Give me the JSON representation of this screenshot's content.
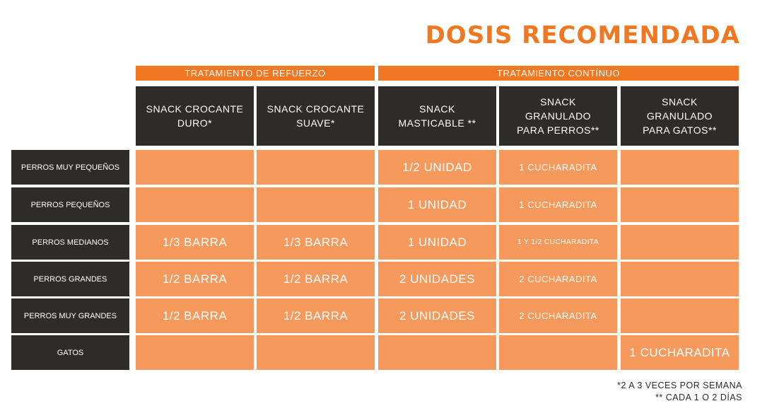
{
  "title": "DOSIS RECOMENDADA",
  "groups": [
    "TRATAMIENTO DE REFUERZO",
    "TRATAMIENTO CONTÍNUO"
  ],
  "columns": [
    "SNACK CROCANTE\nDURO*",
    "SNACK CROCANTE\nSUAVE*",
    "SNACK\nMASTICABLE **",
    "SNACK\nGRANULADO\nPARA PERROS**",
    "SNACK\nGRANULADO\nPARA GATOS**"
  ],
  "rows": [
    {
      "label": "PERROS MUY PEQUEÑOS",
      "cells": [
        "",
        "",
        "1/2 UNIDAD",
        "1 CUCHARADITA",
        ""
      ]
    },
    {
      "label": "PERROS PEQUEÑOS",
      "cells": [
        "",
        "",
        "1 UNIDAD",
        "1 CUCHARADITA",
        ""
      ]
    },
    {
      "label": "PERROS MEDIANOS",
      "cells": [
        "1/3 BARRA",
        "1/3 BARRA",
        "1 UNIDAD",
        "1 Y 1/2 CUCHARADITA",
        ""
      ]
    },
    {
      "label": "PERROS GRANDES",
      "cells": [
        "1/2 BARRA",
        "1/2 BARRA",
        "2 UNIDADES",
        "2 CUCHARADITA",
        ""
      ]
    },
    {
      "label": "PERROS MUY GRANDES",
      "cells": [
        "1/2 BARRA",
        "1/2 BARRA",
        "2 UNIDADES",
        "2 CUCHARADITA",
        ""
      ]
    },
    {
      "label": "GATOS",
      "cells": [
        "",
        "",
        "",
        "",
        "1 CUCHARADITA"
      ]
    }
  ],
  "footnotes": [
    "*2 A 3 VECES POR SEMANA",
    "** CADA 1 O 2 DÍAS"
  ],
  "colors": {
    "accent": "#F07823",
    "cell": "#F59A5C",
    "header": "#2E2C2B"
  }
}
